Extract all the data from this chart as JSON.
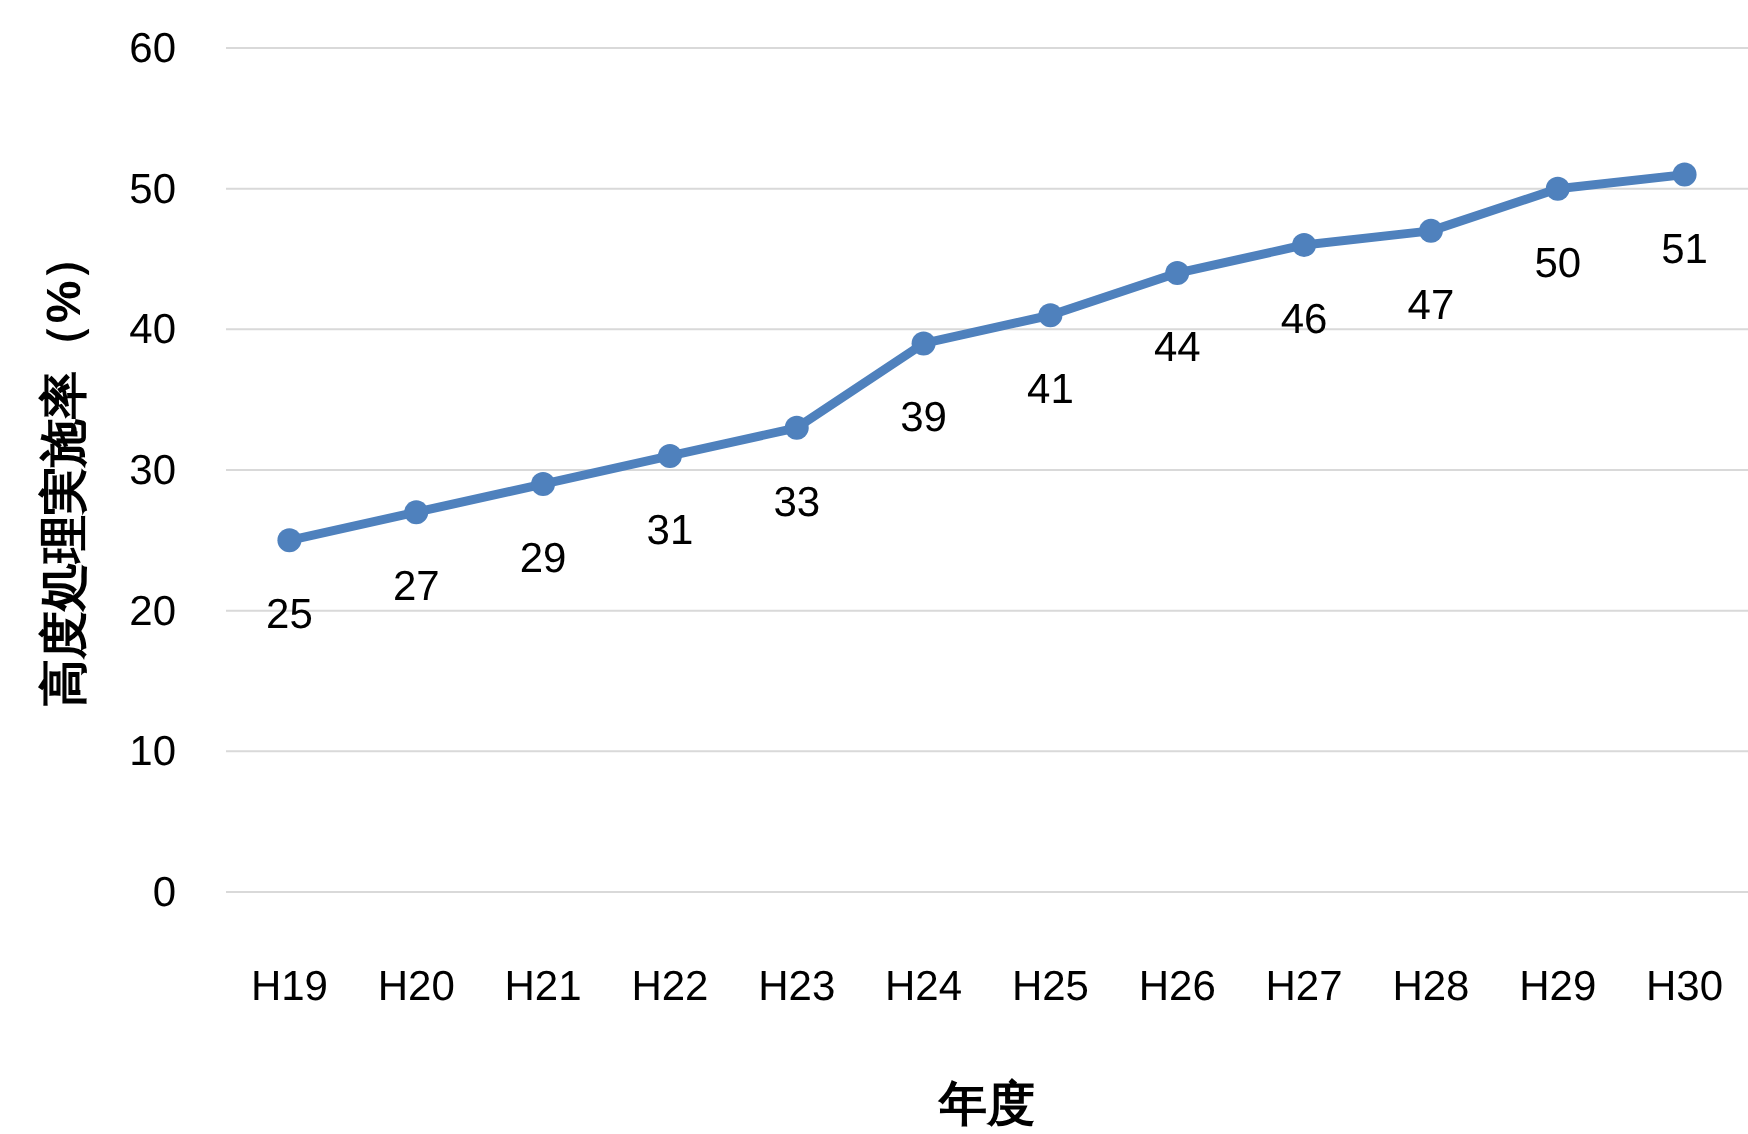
{
  "chart_data": {
    "type": "line",
    "xlabel": "年度",
    "ylabel": "高度処理実施率（%）",
    "categories": [
      "H19",
      "H20",
      "H21",
      "H22",
      "H23",
      "H24",
      "H25",
      "H26",
      "H27",
      "H28",
      "H29",
      "H30"
    ],
    "series": [
      {
        "color": "#4f81bd",
        "values": [
          25,
          27,
          29,
          31,
          33,
          39,
          41,
          44,
          46,
          47,
          50,
          51
        ]
      }
    ],
    "ylim": [
      0,
      60
    ],
    "yticks": [
      0,
      10,
      20,
      30,
      40,
      50,
      60
    ],
    "grid": "y",
    "data_labels": true,
    "marker": "circle",
    "line_style": "solid"
  }
}
